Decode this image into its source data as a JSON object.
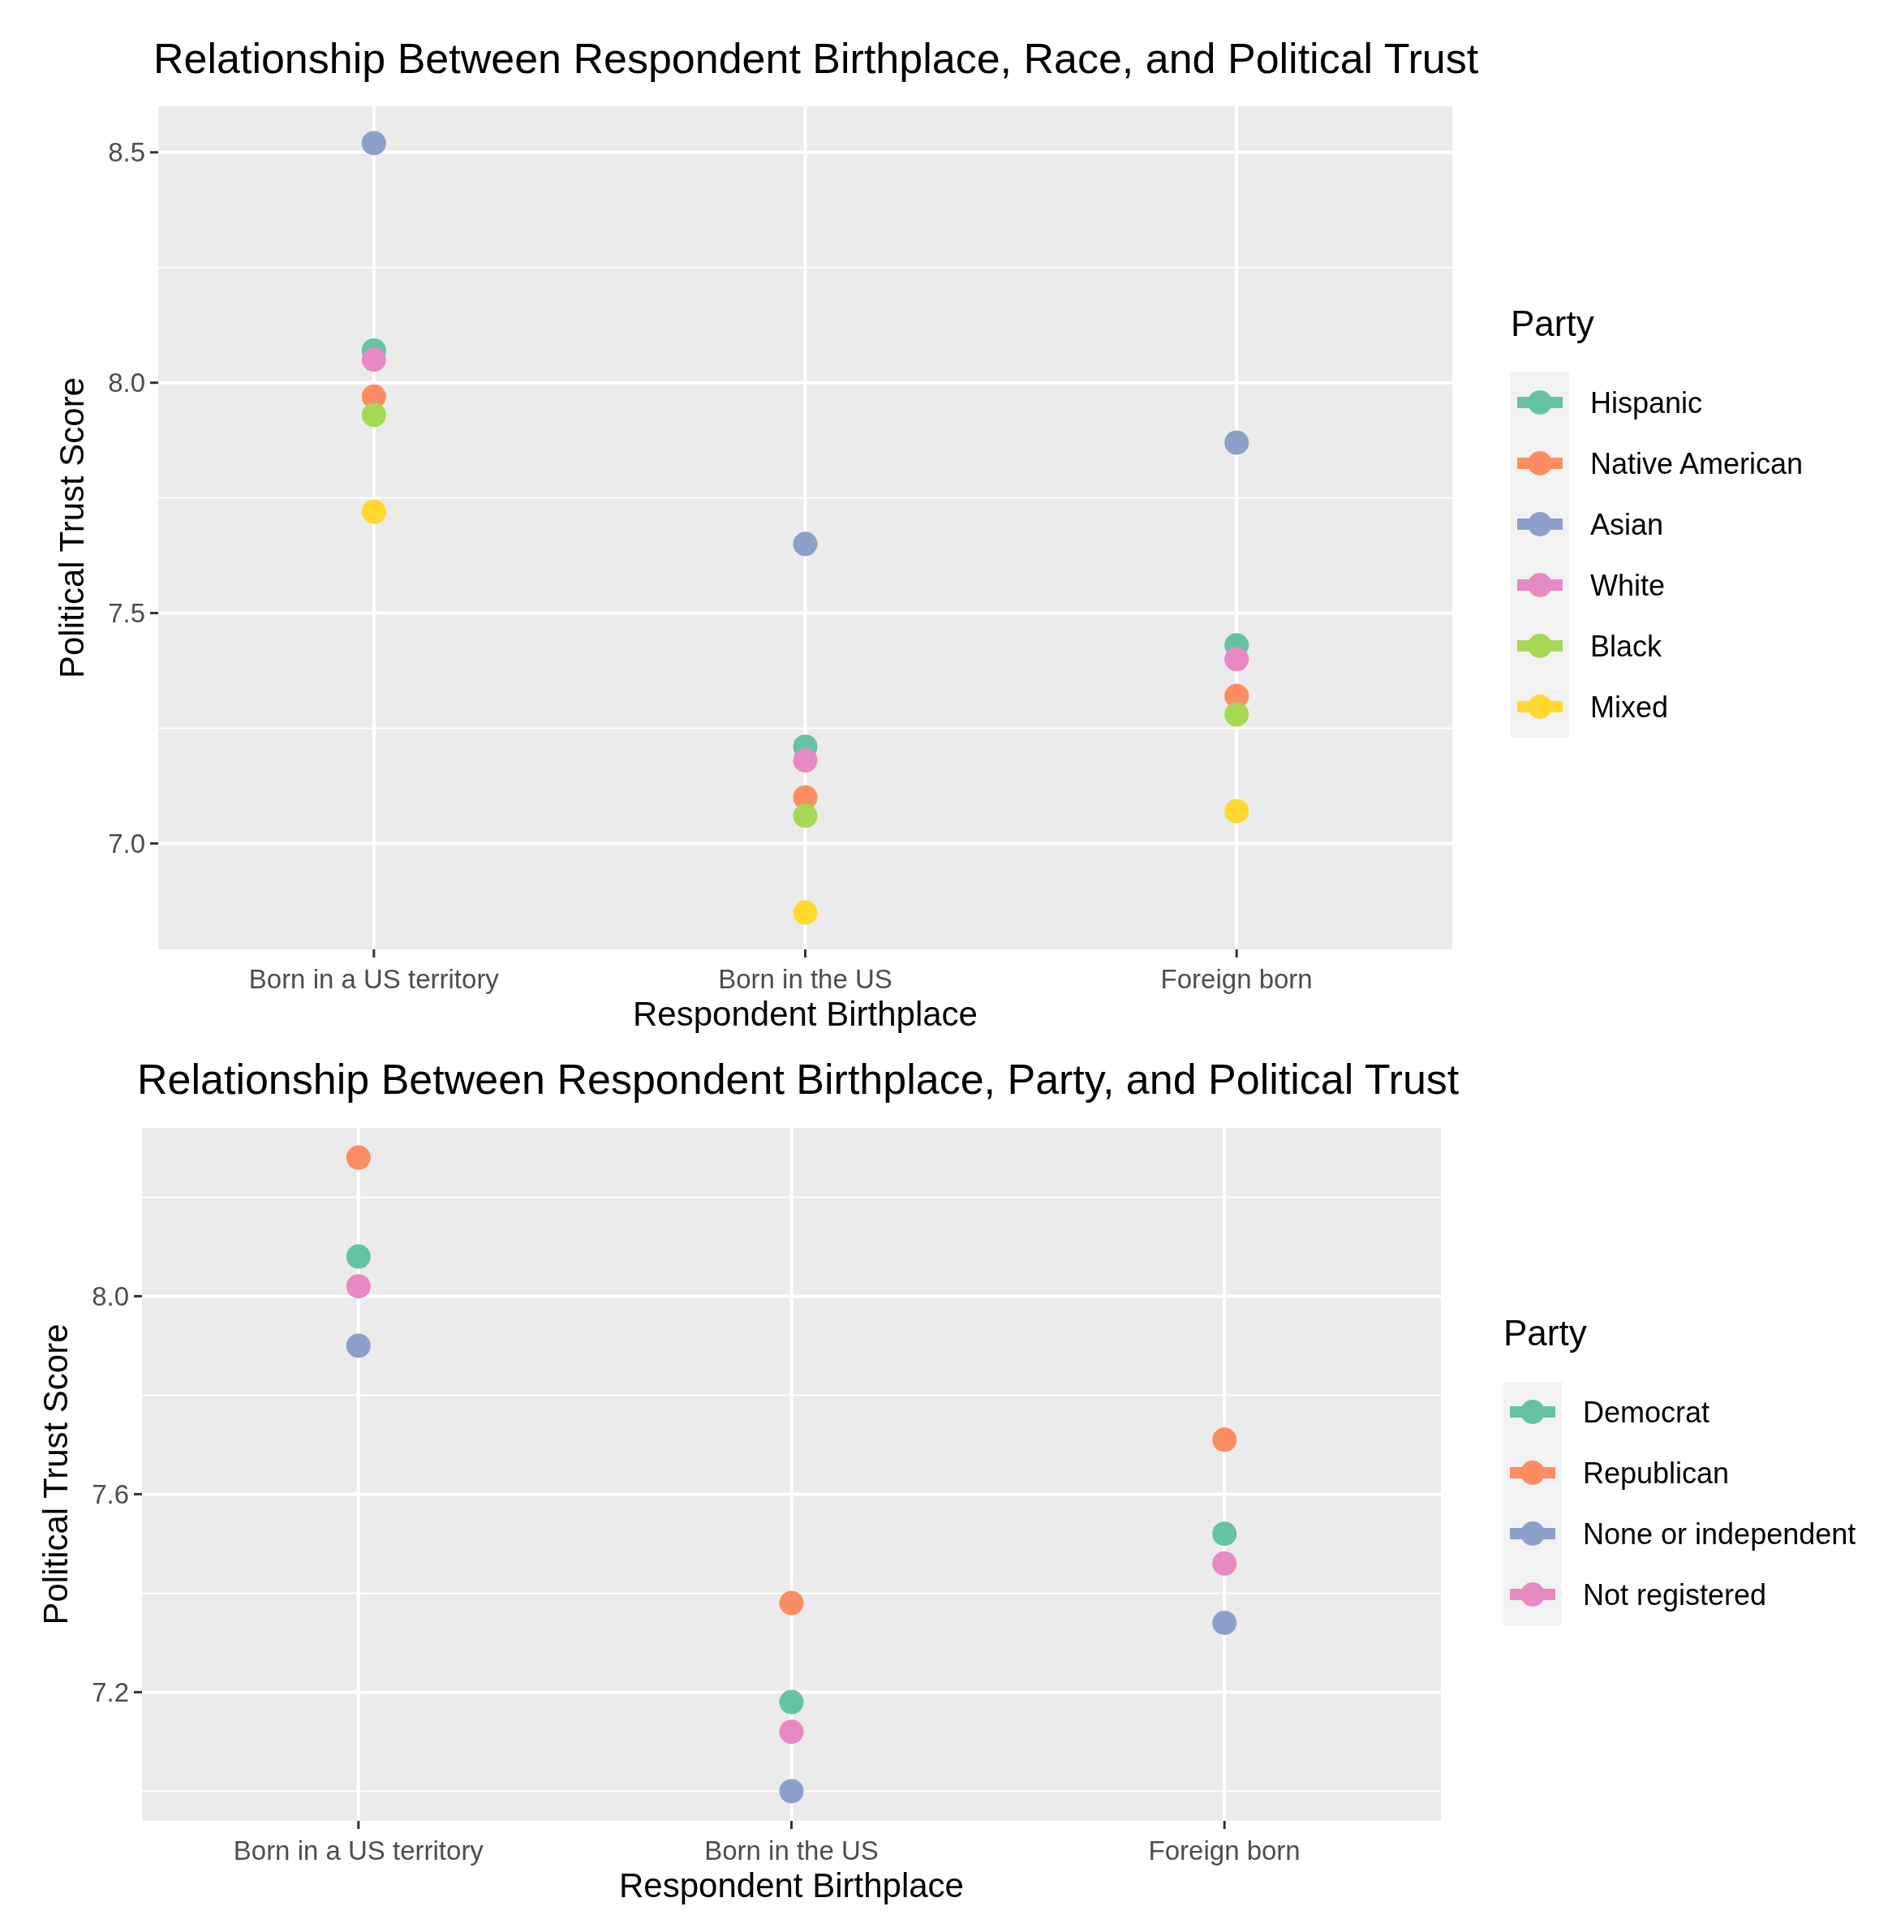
{
  "chart_data": [
    {
      "type": "scatter",
      "title": "Relationship Between Respondent Birthplace, Race, and Political Trust",
      "xlabel": "Respondent Birthplace",
      "ylabel": "Political Trust Score",
      "legend_title": "Party",
      "categories": [
        "Born in a US territory",
        "Born in the US",
        "Foreign born"
      ],
      "series": [
        {
          "name": "Hispanic",
          "color": "#66c2a5",
          "values": [
            8.07,
            7.21,
            7.43
          ]
        },
        {
          "name": "Native American",
          "color": "#fc8d62",
          "values": [
            7.97,
            7.1,
            7.32
          ]
        },
        {
          "name": "Asian",
          "color": "#8da0cb",
          "values": [
            8.52,
            7.65,
            7.87
          ]
        },
        {
          "name": "White",
          "color": "#e78ac3",
          "values": [
            8.05,
            7.18,
            7.4
          ]
        },
        {
          "name": "Black",
          "color": "#a6d854",
          "values": [
            7.93,
            7.06,
            7.28
          ]
        },
        {
          "name": "Mixed",
          "color": "#ffd92f",
          "values": [
            7.72,
            6.85,
            7.07
          ]
        }
      ],
      "ylim": [
        6.77,
        8.6
      ],
      "yticks": [
        {
          "value": 7.0,
          "label": "7.0"
        },
        {
          "value": 7.25,
          "label": null
        },
        {
          "value": 7.5,
          "label": "7.5"
        },
        {
          "value": 7.75,
          "label": null
        },
        {
          "value": 8.0,
          "label": "8.0"
        },
        {
          "value": 8.25,
          "label": null
        },
        {
          "value": 8.5,
          "label": "8.5"
        }
      ],
      "grid": true,
      "legend": "right",
      "marker": "circle"
    },
    {
      "type": "scatter",
      "title": "Relationship Between Respondent Birthplace, Party, and Political Trust",
      "xlabel": "Respondent Birthplace",
      "ylabel": "Political Trust Score",
      "legend_title": "Party",
      "categories": [
        "Born in a US territory",
        "Born in the US",
        "Foreign born"
      ],
      "series": [
        {
          "name": "Democrat",
          "color": "#66c2a5",
          "values": [
            8.08,
            7.18,
            7.52
          ]
        },
        {
          "name": "Republican",
          "color": "#fc8d62",
          "values": [
            8.28,
            7.38,
            7.71
          ]
        },
        {
          "name": "None or independent",
          "color": "#8da0cb",
          "values": [
            7.9,
            7.0,
            7.34
          ]
        },
        {
          "name": "Not registered",
          "color": "#e78ac3",
          "values": [
            8.02,
            7.12,
            7.46
          ]
        }
      ],
      "ylim": [
        6.94,
        8.34
      ],
      "yticks": [
        {
          "value": 7.0,
          "label": null
        },
        {
          "value": 7.2,
          "label": "7.2"
        },
        {
          "value": 7.4,
          "label": null
        },
        {
          "value": 7.6,
          "label": "7.6"
        },
        {
          "value": 7.8,
          "label": null
        },
        {
          "value": 8.0,
          "label": "8.0"
        },
        {
          "value": 8.2,
          "label": null
        }
      ],
      "grid": true,
      "legend": "right",
      "marker": "circle"
    }
  ]
}
